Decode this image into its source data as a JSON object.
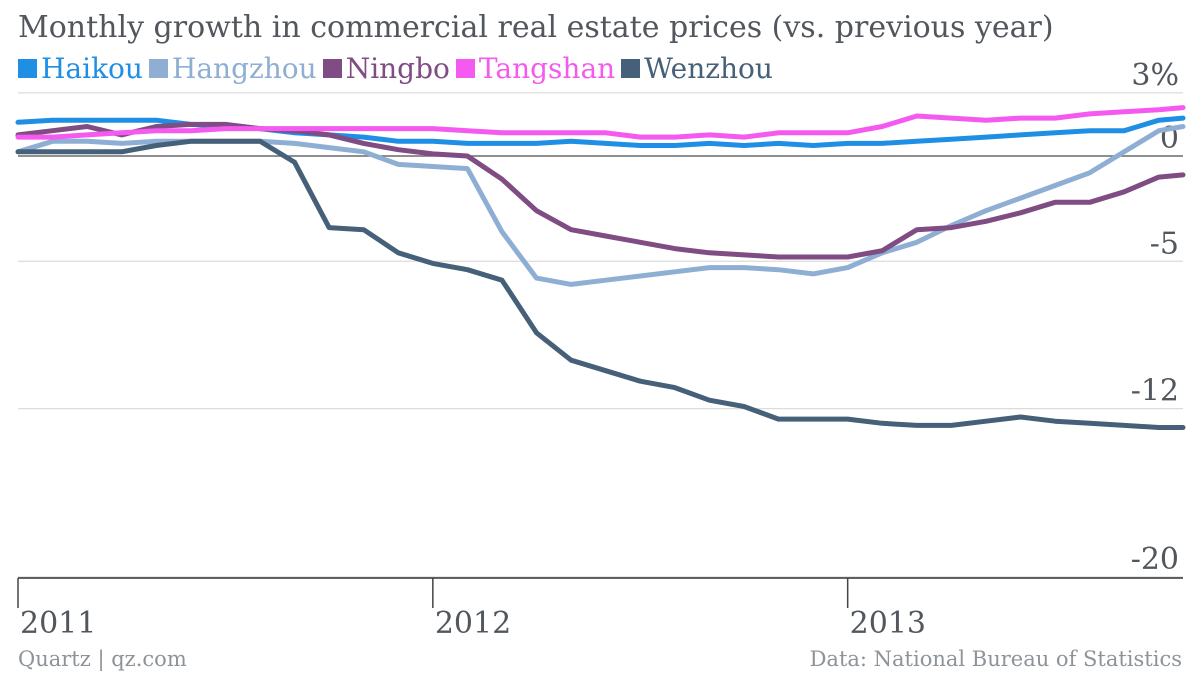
{
  "chart_data": {
    "type": "line",
    "title": "Monthly growth in commercial real estate prices (vs. previous year)",
    "xlabel": "",
    "ylabel": "",
    "y_unit_label": "3%",
    "yticks": [
      {
        "value": 3,
        "label": "3%"
      },
      {
        "value": 0,
        "label": "0"
      },
      {
        "value": -5,
        "label": "-5"
      },
      {
        "value": -12,
        "label": "-12"
      },
      {
        "value": -20,
        "label": "-20"
      }
    ],
    "ylim": [
      -20,
      3
    ],
    "xticks": [
      {
        "value": 0,
        "label": "2011"
      },
      {
        "value": 12,
        "label": "2012"
      },
      {
        "value": 24,
        "label": "2013"
      }
    ],
    "xlim": [
      0,
      33.7
    ],
    "grid": true,
    "legend_position": "top-left",
    "x": [
      0,
      1,
      2,
      3,
      4,
      5,
      6,
      7,
      8,
      9,
      10,
      11,
      12,
      13,
      14,
      15,
      16,
      17,
      18,
      19,
      20,
      21,
      22,
      23,
      24,
      25,
      26,
      27,
      28,
      29,
      30,
      31,
      32,
      33,
      33.7
    ],
    "series": [
      {
        "name": "Haikou",
        "color": "#1f8fe5",
        "values": [
          1.6,
          1.7,
          1.7,
          1.7,
          1.7,
          1.5,
          1.4,
          1.3,
          1.1,
          1.0,
          0.9,
          0.7,
          0.7,
          0.6,
          0.6,
          0.6,
          0.7,
          0.6,
          0.5,
          0.5,
          0.6,
          0.5,
          0.6,
          0.5,
          0.6,
          0.6,
          0.7,
          0.8,
          0.9,
          1.0,
          1.1,
          1.2,
          1.2,
          1.7,
          1.8
        ]
      },
      {
        "name": "Hangzhou",
        "color": "#8eafd3",
        "values": [
          0.2,
          0.7,
          0.7,
          0.6,
          0.7,
          0.7,
          0.7,
          0.7,
          0.6,
          0.4,
          0.2,
          -0.4,
          -0.5,
          -0.6,
          -3.6,
          -5.8,
          -6.1,
          -5.9,
          -5.7,
          -5.5,
          -5.3,
          -5.3,
          -5.4,
          -5.6,
          -5.3,
          -4.6,
          -4.1,
          -3.3,
          -2.6,
          -2.0,
          -1.4,
          -0.8,
          0.2,
          1.2,
          1.4
        ]
      },
      {
        "name": "Ningbo",
        "color": "#7f4c83",
        "values": [
          1.0,
          1.2,
          1.4,
          1.0,
          1.4,
          1.5,
          1.5,
          1.3,
          1.2,
          1.0,
          0.6,
          0.3,
          0.1,
          0.0,
          -1.1,
          -2.6,
          -3.5,
          -3.8,
          -4.1,
          -4.4,
          -4.6,
          -4.7,
          -4.8,
          -4.8,
          -4.8,
          -4.5,
          -3.5,
          -3.4,
          -3.1,
          -2.7,
          -2.2,
          -2.2,
          -1.7,
          -1.0,
          -0.9
        ]
      },
      {
        "name": "Tangshan",
        "color": "#f45af0",
        "values": [
          0.9,
          0.9,
          1.0,
          1.1,
          1.2,
          1.2,
          1.3,
          1.3,
          1.3,
          1.3,
          1.3,
          1.3,
          1.3,
          1.2,
          1.1,
          1.1,
          1.1,
          1.1,
          0.9,
          0.9,
          1.0,
          0.9,
          1.1,
          1.1,
          1.1,
          1.4,
          1.9,
          1.8,
          1.7,
          1.8,
          1.8,
          2.0,
          2.1,
          2.2,
          2.3
        ]
      },
      {
        "name": "Wenzhou",
        "color": "#466079",
        "values": [
          0.2,
          0.2,
          0.2,
          0.2,
          0.5,
          0.7,
          0.7,
          0.7,
          -0.3,
          -3.4,
          -3.5,
          -4.6,
          -5.1,
          -5.4,
          -5.9,
          -8.4,
          -9.7,
          -10.2,
          -10.7,
          -11.0,
          -11.6,
          -11.9,
          -12.5,
          -12.5,
          -12.5,
          -12.7,
          -12.8,
          -12.8,
          -12.6,
          -12.4,
          -12.6,
          -12.7,
          -12.8,
          -12.9,
          -12.9
        ]
      }
    ]
  },
  "footer": {
    "source": "Quartz | qz.com",
    "credit": "Data: National Bureau of Statistics"
  }
}
